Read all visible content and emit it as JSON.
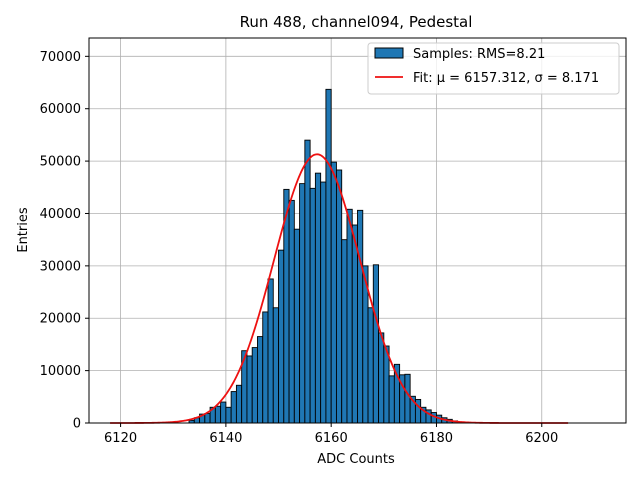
{
  "chart_data": {
    "type": "bar",
    "title": "Run 488, channel094, Pedestal",
    "xlabel": "ADC Counts",
    "ylabel": "Entries",
    "xlim": [
      6114,
      6216
    ],
    "ylim": [
      0,
      73500
    ],
    "xticks": [
      6120,
      6140,
      6160,
      6180,
      6200
    ],
    "yticks": [
      0,
      10000,
      20000,
      30000,
      40000,
      50000,
      60000,
      70000
    ],
    "grid": true,
    "legend_position": "top-right",
    "histogram": {
      "name": "Samples: RMS=8.21",
      "color": "#1f77b4",
      "edgecolor": "#000000",
      "bin_start": 6118,
      "bin_width": 1,
      "counts": [
        0,
        0,
        0,
        0,
        0,
        0,
        0,
        0,
        0,
        0,
        0,
        0,
        0,
        0,
        0,
        500,
        1000,
        1700,
        1800,
        3000,
        3200,
        4000,
        3000,
        6000,
        7200,
        13800,
        12800,
        14400,
        16500,
        21200,
        27500,
        22000,
        33000,
        44600,
        42500,
        37000,
        45700,
        54000,
        44800,
        47700,
        46000,
        63700,
        49800,
        48300,
        35000,
        40800,
        37800,
        40600,
        30000,
        22000,
        30200,
        17200,
        14700,
        9000,
        11200,
        9200,
        9300,
        5100,
        4500,
        3000,
        2500,
        2000,
        1500,
        1000,
        700,
        400,
        200,
        0,
        0,
        0,
        0,
        0,
        0,
        0,
        0,
        0,
        0,
        0,
        0,
        0,
        0,
        0,
        0,
        0,
        0,
        0,
        0,
        0
      ]
    },
    "fit": {
      "name": "Fit: μ = 6157.312, σ = 8.171",
      "color": "#ee1111",
      "mu": 6157.312,
      "sigma": 8.171,
      "amplitude": 51300,
      "x_range": [
        6118,
        6205
      ]
    }
  }
}
